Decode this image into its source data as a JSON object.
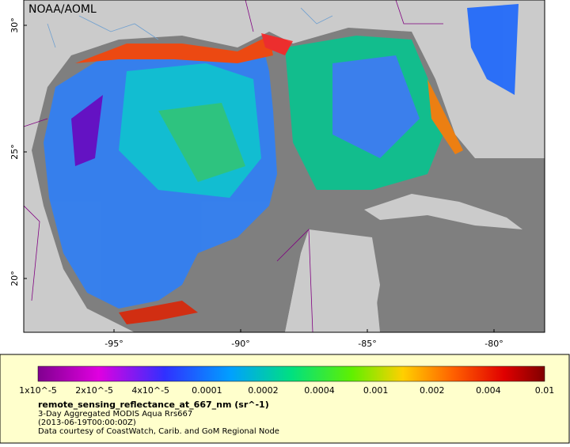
{
  "map": {
    "title": "NOAA/AOML",
    "lat_labels": [
      "30°",
      "25°",
      "20°"
    ],
    "lon_labels": [
      "-95°",
      "-90°",
      "-85°",
      "-80°"
    ]
  },
  "colorbar": {
    "labels": [
      "1x10^-5",
      "2x10^-5",
      "4x10^-5",
      "0.0001",
      "0.0002",
      "0.0004",
      "0.001",
      "0.002",
      "0.004",
      "0.01"
    ]
  },
  "legend": {
    "variable": "remote_sensing_reflectance_at_667_nm (sr^-1)",
    "lines": [
      "3-Day Aggregated MODIS Aqua Rrs667",
      "(2013-06-19T00:00:00Z)",
      "Data courtesy of CoastWatch, Carib. and GoM Regional Node"
    ]
  }
}
